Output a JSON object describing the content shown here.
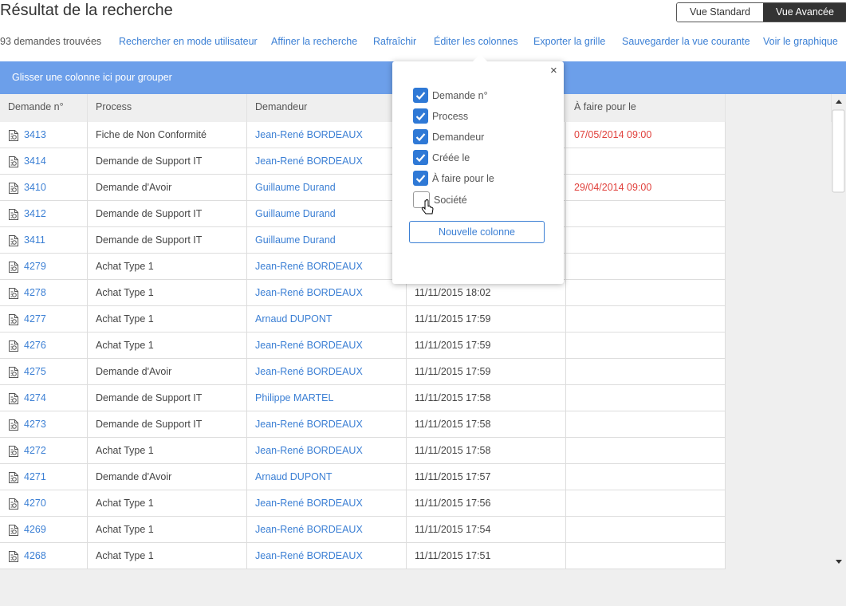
{
  "header": {
    "title": "Résultat de la recherche",
    "views": [
      {
        "label": "Vue Standard",
        "active": false
      },
      {
        "label": "Vue Avancée",
        "active": true
      }
    ]
  },
  "toolbar": {
    "count": "93 demandes trouvées",
    "links": [
      "Rechercher en mode utilisateur",
      "Affiner la recherche",
      "Rafraîchir",
      "Éditer les colonnes",
      "Exporter la grille",
      "Sauvegarder la vue courante",
      "Voir le graphique"
    ]
  },
  "grid": {
    "group_hint": "Glisser une colonne ici pour grouper",
    "columns": [
      "Demande n°",
      "Process",
      "Demandeur",
      null,
      "À faire pour le"
    ],
    "rows": [
      [
        "3413",
        "Fiche de Non Conformité",
        "Jean-René BORDEAUX",
        null,
        "07/05/2014 09:00"
      ],
      [
        "3414",
        "Demande de Support IT",
        "Jean-René BORDEAUX",
        null,
        null
      ],
      [
        "3410",
        "Demande d'Avoir",
        "Guillaume Durand",
        null,
        "29/04/2014 09:00"
      ],
      [
        "3412",
        "Demande de Support IT",
        "Guillaume Durand",
        null,
        null
      ],
      [
        "3411",
        "Demande de Support IT",
        "Guillaume Durand",
        null,
        null
      ],
      [
        "4279",
        "Achat Type 1",
        "Jean-René BORDEAUX",
        null,
        null
      ],
      [
        "4278",
        "Achat Type 1",
        "Jean-René BORDEAUX",
        "11/11/2015 18:02",
        null
      ],
      [
        "4277",
        "Achat Type 1",
        "Arnaud DUPONT",
        "11/11/2015 17:59",
        null
      ],
      [
        "4276",
        "Achat Type 1",
        "Jean-René BORDEAUX",
        "11/11/2015 17:59",
        null
      ],
      [
        "4275",
        "Demande d'Avoir",
        "Jean-René BORDEAUX",
        "11/11/2015 17:59",
        null
      ],
      [
        "4274",
        "Demande de Support IT",
        "Philippe MARTEL",
        "11/11/2015 17:58",
        null
      ],
      [
        "4273",
        "Demande de Support IT",
        "Jean-René BORDEAUX",
        "11/11/2015 17:58",
        null
      ],
      [
        "4272",
        "Achat Type 1",
        "Jean-René BORDEAUX",
        "11/11/2015 17:58",
        null
      ],
      [
        "4271",
        "Demande d'Avoir",
        "Arnaud DUPONT",
        "11/11/2015 17:57",
        null
      ],
      [
        "4270",
        "Achat Type 1",
        "Jean-René BORDEAUX",
        "11/11/2015 17:56",
        null
      ],
      [
        "4269",
        "Achat Type 1",
        "Jean-René BORDEAUX",
        "11/11/2015 17:54",
        null
      ],
      [
        "4268",
        "Achat Type 1",
        "Jean-René BORDEAUX",
        "11/11/2015 17:51",
        null
      ]
    ]
  },
  "column_editor": {
    "options": [
      {
        "label": "Demande n°",
        "checked": true
      },
      {
        "label": "Process",
        "checked": true
      },
      {
        "label": "Demandeur",
        "checked": true
      },
      {
        "label": "Créée le",
        "checked": true
      },
      {
        "label": "À faire pour le",
        "checked": true
      },
      {
        "label": "Société",
        "checked": false
      }
    ],
    "button": "Nouvelle colonne"
  }
}
